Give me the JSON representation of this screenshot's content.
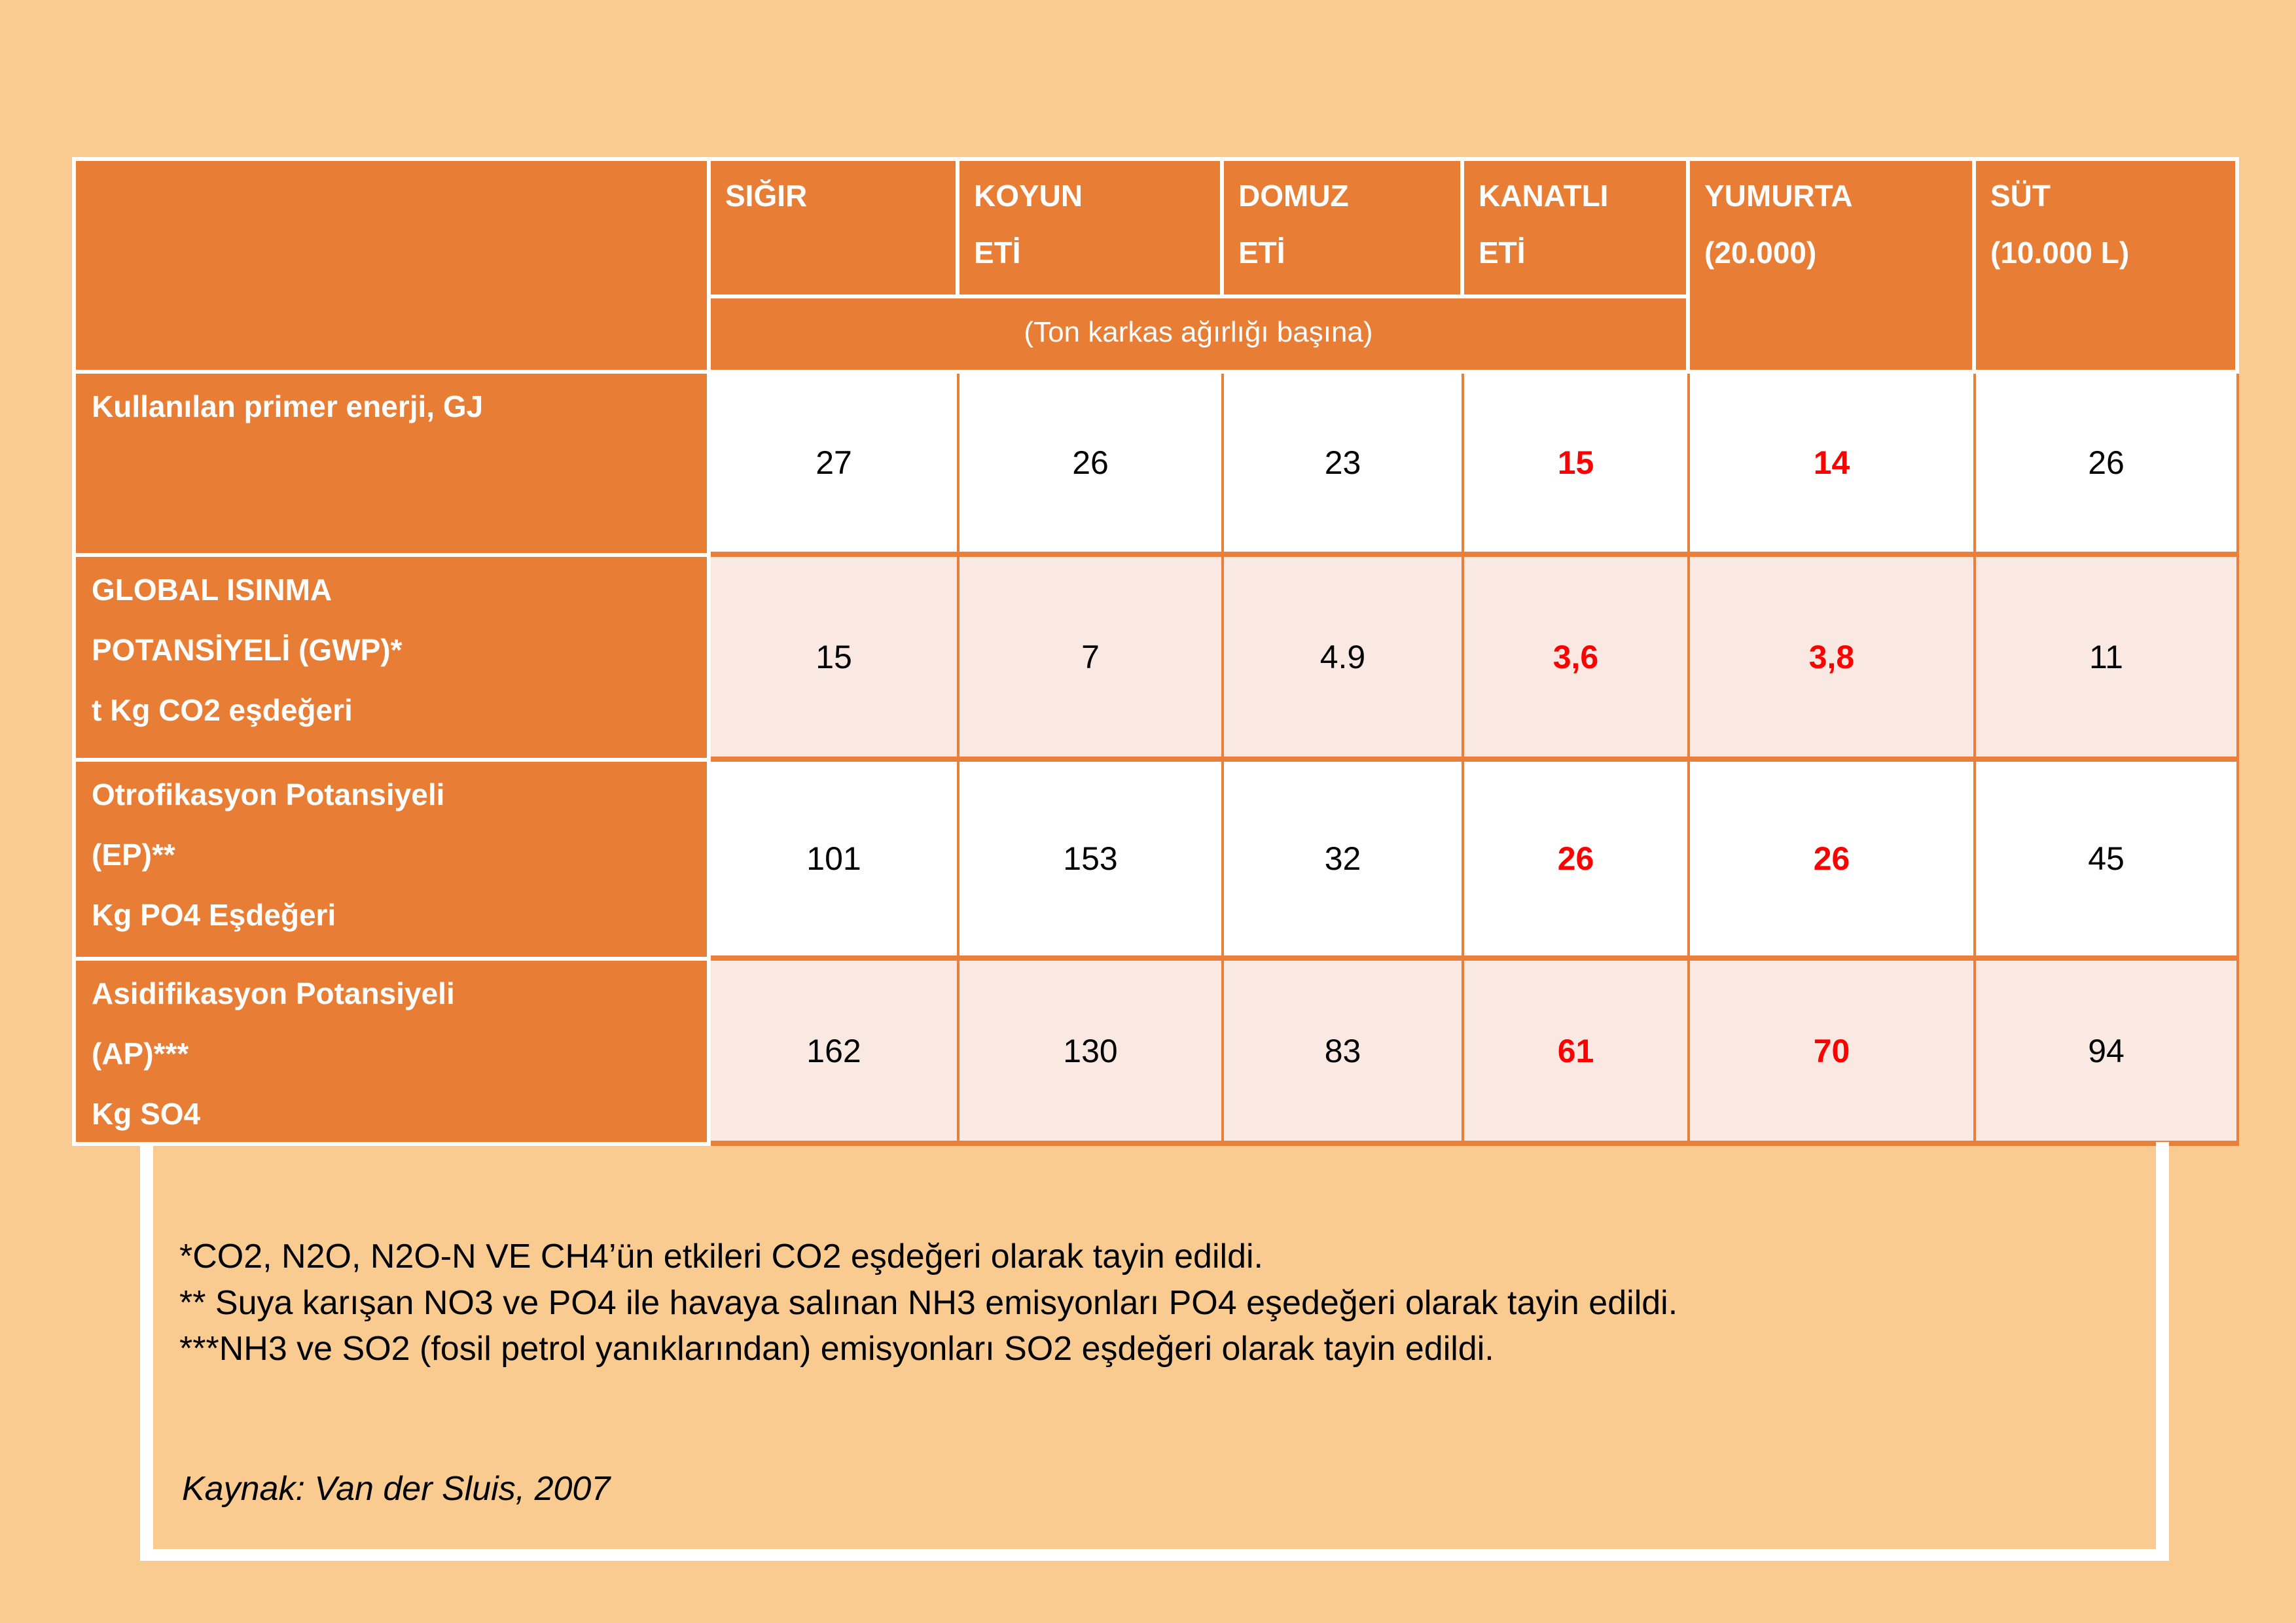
{
  "slide": {
    "background_color": "#FACB90",
    "accent_orange": "#E87D35",
    "band_pink": "#FAE9E3",
    "highlight_red": "#FF0000"
  },
  "chart_data": {
    "type": "table",
    "column_headers": {
      "sigir": "SIĞIR",
      "koyun": "KOYUN\nETİ",
      "domuz": "DOMUZ\nETİ",
      "kanatli": "KANATLI\nETİ",
      "yumurta": "YUMURTA\n(20.000)",
      "sut": "SÜT\n(10.000 L)"
    },
    "subheader": "(Ton karkas ağırlığı başına)",
    "red_value_columns": [
      "KANATLI ETİ",
      "YUMURTA (20.000)"
    ],
    "rows": [
      {
        "label": "Kullanılan primer enerji, GJ",
        "values": [
          "27",
          "26",
          "23",
          "15",
          "14",
          "26"
        ]
      },
      {
        "label": "GLOBAL ISINMA\nPOTANSİYELİ (GWP)*\nt Kg CO2 eşdeğeri",
        "values": [
          "15",
          "7",
          "4.9",
          "3,6",
          "3,8",
          "11"
        ]
      },
      {
        "label": "Otrofikasyon Potansiyeli\n(EP)**\nKg PO4 Eşdeğeri",
        "values": [
          "101",
          "153",
          "32",
          "26",
          "26",
          "45"
        ]
      },
      {
        "label": "Asidifikasyon Potansiyeli\n(AP)***\nKg SO4",
        "values": [
          "162",
          "130",
          "83",
          "61",
          "70",
          "94"
        ]
      }
    ]
  },
  "footnotes": {
    "lines": "*CO2, N2O, N2O-N VE CH4’ün etkileri CO2 eşdeğeri olarak tayin edildi.\n** Suya karışan NO3 ve PO4 ile havaya salınan NH3 emisyonları PO4 eşedeğeri olarak tayin edildi.\n***NH3 ve SO2 (fosil petrol yanıklarından) emisyonları SO2 eşdeğeri olarak tayin edildi.",
    "source": "Kaynak: Van der Sluis, 2007"
  }
}
